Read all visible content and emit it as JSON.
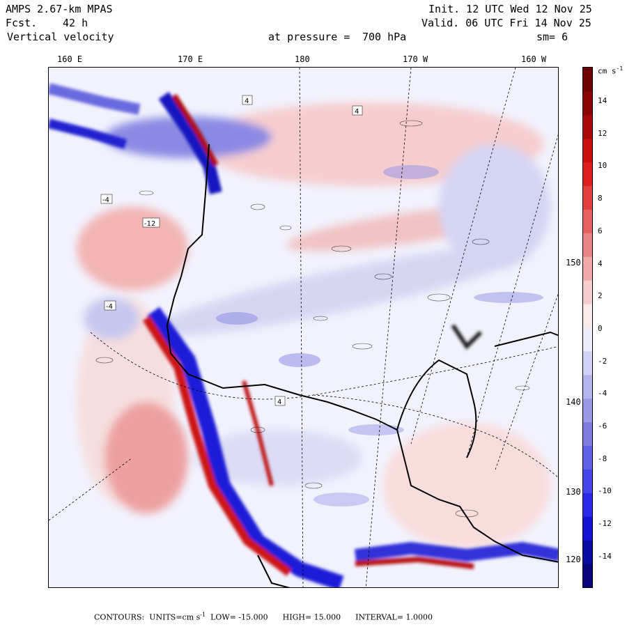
{
  "header": {
    "model": "AMPS 2.67-km MPAS",
    "fcst_label": "Fcst.",
    "fcst_value": "42 h",
    "field": "Vertical velocity",
    "init": "Init. 12 UTC Wed 12 Nov 25",
    "valid": "Valid. 06 UTC Fri 14 Nov 25",
    "pressure_label": "at pressure =",
    "pressure_value": "700 hPa",
    "smoothing": "sm= 6"
  },
  "top_longitudes": [
    "160 E",
    "170 E",
    "180",
    "170 W",
    "160 W"
  ],
  "right_longitudes": [
    "150 W",
    "140 W",
    "130 W",
    "120 W"
  ],
  "colorbar": {
    "units": "cm s",
    "units_exp": "-1",
    "ticks": [
      "14",
      "12",
      "10",
      "8",
      "6",
      "4",
      "2",
      "0",
      "-2",
      "-4",
      "-6",
      "-8",
      "-10",
      "-12",
      "-14"
    ],
    "colors": [
      "#08067a",
      "#0b0ba6",
      "#1313d4",
      "#2a2ae8",
      "#4545ea",
      "#6161e4",
      "#7b7be0",
      "#9999e6",
      "#b5b5ee",
      "#d2d2f6",
      "#ececfb",
      "#fbeaea",
      "#f6cccc",
      "#f0a9a9",
      "#ea8585",
      "#e66060",
      "#e23e3e",
      "#dc1e1e",
      "#c80e0e",
      "#a80808",
      "#8a0404",
      "#6e0202"
    ]
  },
  "contour_labels": [
    "4",
    "-4",
    "-12",
    "4",
    "-4",
    "4"
  ],
  "footer": {
    "contours_label": "CONTOURS:",
    "units_label": "UNITS=cm s",
    "units_exp": "-1",
    "low": "LOW= -15.000",
    "high": "HIGH= 15.000",
    "interval": "INTERVAL= 1.0000"
  },
  "colors": {
    "updraft": "#d21a1a",
    "downdraft": "#1414c8",
    "neutral": "#f4f4ff"
  }
}
